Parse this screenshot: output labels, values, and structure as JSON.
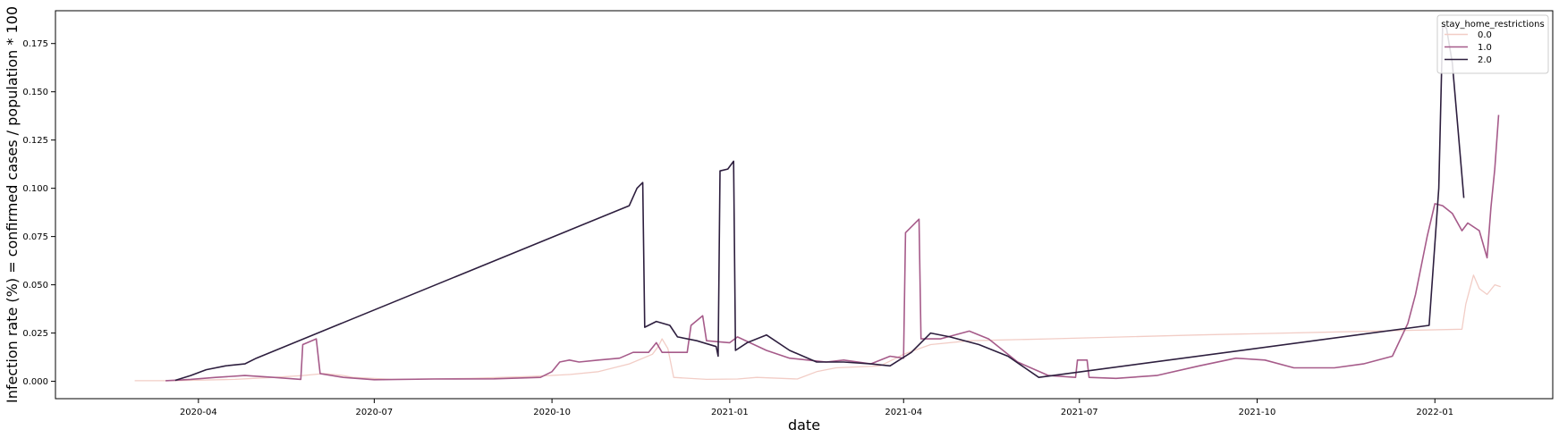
{
  "chart_data": {
    "type": "line",
    "xlabel": "date",
    "ylabel": "Infection rate (%) = confirmed cases / population * 100",
    "x_ticks": [
      "2020-04",
      "2020-07",
      "2020-10",
      "2021-01",
      "2021-04",
      "2021-07",
      "2021-10",
      "2022-01"
    ],
    "y_ticks": [
      "0.000",
      "0.025",
      "0.050",
      "0.075",
      "0.100",
      "0.125",
      "0.150",
      "0.175"
    ],
    "ylim": [
      -0.009,
      0.192
    ],
    "xlim": [
      "2020-01-18",
      "2022-03-03"
    ],
    "grid": false,
    "legend": {
      "title": "stay_home_restrictions",
      "placement": "upper right"
    },
    "series": [
      {
        "name": "0.0",
        "color": "#f2cdc6",
        "points": [
          [
            "2020-02-28",
            0.0003
          ],
          [
            "2020-03-20",
            0.0003
          ],
          [
            "2020-04-20",
            0.001
          ],
          [
            "2020-05-10",
            0.002
          ],
          [
            "2020-05-25",
            0.003
          ],
          [
            "2020-06-05",
            0.004
          ],
          [
            "2020-06-15",
            0.003
          ],
          [
            "2020-06-20",
            0.002
          ],
          [
            "2020-07-10",
            0.001
          ],
          [
            "2020-08-20",
            0.0015
          ],
          [
            "2020-09-20",
            0.0025
          ],
          [
            "2020-10-10",
            0.0035
          ],
          [
            "2020-10-25",
            0.005
          ],
          [
            "2020-11-10",
            0.009
          ],
          [
            "2020-11-22",
            0.014
          ],
          [
            "2020-11-25",
            0.018
          ],
          [
            "2020-11-27",
            0.022
          ],
          [
            "2020-11-30",
            0.017
          ],
          [
            "2020-12-03",
            0.002
          ],
          [
            "2020-12-20",
            0.001
          ],
          [
            "2021-01-05",
            0.0012
          ],
          [
            "2021-01-15",
            0.002
          ],
          [
            "2021-02-05",
            0.0012
          ],
          [
            "2021-02-15",
            0.005
          ],
          [
            "2021-02-25",
            0.007
          ],
          [
            "2021-03-20",
            0.008
          ],
          [
            "2021-04-01",
            0.014
          ],
          [
            "2021-04-15",
            0.019
          ],
          [
            "2021-05-05",
            0.021
          ],
          [
            "2021-06-15",
            0.022
          ],
          [
            "2021-09-01",
            0.024
          ],
          [
            "2021-12-01",
            0.026
          ],
          [
            "2022-01-15",
            0.027
          ],
          [
            "2022-01-17",
            0.04
          ],
          [
            "2022-01-21",
            0.055
          ],
          [
            "2022-01-24",
            0.048
          ],
          [
            "2022-01-28",
            0.045
          ],
          [
            "2022-02-01",
            0.05
          ],
          [
            "2022-02-04",
            0.049
          ]
        ]
      },
      {
        "name": "1.0",
        "color": "#a65b8a",
        "points": [
          [
            "2020-03-15",
            0.0003
          ],
          [
            "2020-03-28",
            0.001
          ],
          [
            "2020-04-10",
            0.002
          ],
          [
            "2020-04-25",
            0.003
          ],
          [
            "2020-05-10",
            0.002
          ],
          [
            "2020-05-24",
            0.001
          ],
          [
            "2020-05-25",
            0.019
          ],
          [
            "2020-06-01",
            0.022
          ],
          [
            "2020-06-03",
            0.004
          ],
          [
            "2020-06-15",
            0.002
          ],
          [
            "2020-07-01",
            0.0008
          ],
          [
            "2020-08-01",
            0.0012
          ],
          [
            "2020-09-01",
            0.0013
          ],
          [
            "2020-09-25",
            0.002
          ],
          [
            "2020-10-01",
            0.005
          ],
          [
            "2020-10-05",
            0.01
          ],
          [
            "2020-10-10",
            0.011
          ],
          [
            "2020-10-15",
            0.01
          ],
          [
            "2020-10-25",
            0.011
          ],
          [
            "2020-11-05",
            0.012
          ],
          [
            "2020-11-12",
            0.015
          ],
          [
            "2020-11-20",
            0.015
          ],
          [
            "2020-11-24",
            0.02
          ],
          [
            "2020-11-27",
            0.015
          ],
          [
            "2020-12-10",
            0.015
          ],
          [
            "2020-12-12",
            0.029
          ],
          [
            "2020-12-18",
            0.034
          ],
          [
            "2020-12-20",
            0.021
          ],
          [
            "2021-01-01",
            0.02
          ],
          [
            "2021-01-05",
            0.023
          ],
          [
            "2021-01-20",
            0.016
          ],
          [
            "2021-02-01",
            0.012
          ],
          [
            "2021-02-20",
            0.01
          ],
          [
            "2021-03-01",
            0.011
          ],
          [
            "2021-03-15",
            0.009
          ],
          [
            "2021-03-25",
            0.013
          ],
          [
            "2021-04-01",
            0.012
          ],
          [
            "2021-04-02",
            0.077
          ],
          [
            "2021-04-05",
            0.08
          ],
          [
            "2021-04-09",
            0.084
          ],
          [
            "2021-04-10",
            0.022
          ],
          [
            "2021-04-20",
            0.022
          ],
          [
            "2021-05-05",
            0.026
          ],
          [
            "2021-05-15",
            0.022
          ],
          [
            "2021-05-30",
            0.01
          ],
          [
            "2021-06-15",
            0.003
          ],
          [
            "2021-06-29",
            0.002
          ],
          [
            "2021-06-30",
            0.011
          ],
          [
            "2021-07-05",
            0.011
          ],
          [
            "2021-07-06",
            0.002
          ],
          [
            "2021-07-20",
            0.0015
          ],
          [
            "2021-08-10",
            0.003
          ],
          [
            "2021-09-01",
            0.008
          ],
          [
            "2021-09-20",
            0.012
          ],
          [
            "2021-10-05",
            0.011
          ],
          [
            "2021-10-20",
            0.007
          ],
          [
            "2021-11-10",
            0.007
          ],
          [
            "2021-11-25",
            0.009
          ],
          [
            "2021-12-10",
            0.013
          ],
          [
            "2021-12-18",
            0.03
          ],
          [
            "2021-12-22",
            0.045
          ],
          [
            "2021-12-28",
            0.075
          ],
          [
            "2022-01-01",
            0.092
          ],
          [
            "2022-01-05",
            0.091
          ],
          [
            "2022-01-10",
            0.087
          ],
          [
            "2022-01-15",
            0.078
          ],
          [
            "2022-01-18",
            0.082
          ],
          [
            "2022-01-24",
            0.078
          ],
          [
            "2022-01-28",
            0.064
          ],
          [
            "2022-01-30",
            0.09
          ],
          [
            "2022-02-01",
            0.11
          ],
          [
            "2022-02-03",
            0.138
          ]
        ]
      },
      {
        "name": "2.0",
        "color": "#2d1e3e",
        "points": [
          [
            "2020-03-20",
            0.0005
          ],
          [
            "2020-03-28",
            0.003
          ],
          [
            "2020-04-05",
            0.006
          ],
          [
            "2020-04-15",
            0.008
          ],
          [
            "2020-04-25",
            0.009
          ],
          [
            "2020-05-01",
            0.012
          ],
          [
            "2020-11-10",
            0.091
          ],
          [
            "2020-11-14",
            0.1
          ],
          [
            "2020-11-17",
            0.103
          ],
          [
            "2020-11-18",
            0.028
          ],
          [
            "2020-11-24",
            0.031
          ],
          [
            "2020-12-01",
            0.029
          ],
          [
            "2020-12-05",
            0.023
          ],
          [
            "2020-12-15",
            0.021
          ],
          [
            "2020-12-25",
            0.018
          ],
          [
            "2020-12-26",
            0.013
          ],
          [
            "2020-12-27",
            0.109
          ],
          [
            "2020-12-31",
            0.11
          ],
          [
            "2021-01-03",
            0.114
          ],
          [
            "2021-01-04",
            0.016
          ],
          [
            "2021-01-10",
            0.02
          ],
          [
            "2021-01-20",
            0.024
          ],
          [
            "2021-02-01",
            0.016
          ],
          [
            "2021-02-15",
            0.01
          ],
          [
            "2021-03-01",
            0.01
          ],
          [
            "2021-03-15",
            0.009
          ],
          [
            "2021-03-25",
            0.008
          ],
          [
            "2021-04-05",
            0.015
          ],
          [
            "2021-04-15",
            0.025
          ],
          [
            "2021-04-25",
            0.023
          ],
          [
            "2021-05-10",
            0.019
          ],
          [
            "2021-05-25",
            0.013
          ],
          [
            "2021-06-10",
            0.002
          ],
          [
            "2021-12-29",
            0.029
          ],
          [
            "2022-01-03",
            0.1
          ],
          [
            "2022-01-05",
            0.184
          ],
          [
            "2022-01-07",
            0.183
          ],
          [
            "2022-01-10",
            0.165
          ],
          [
            "2022-01-13",
            0.13
          ],
          [
            "2022-01-16",
            0.095
          ]
        ]
      }
    ]
  }
}
